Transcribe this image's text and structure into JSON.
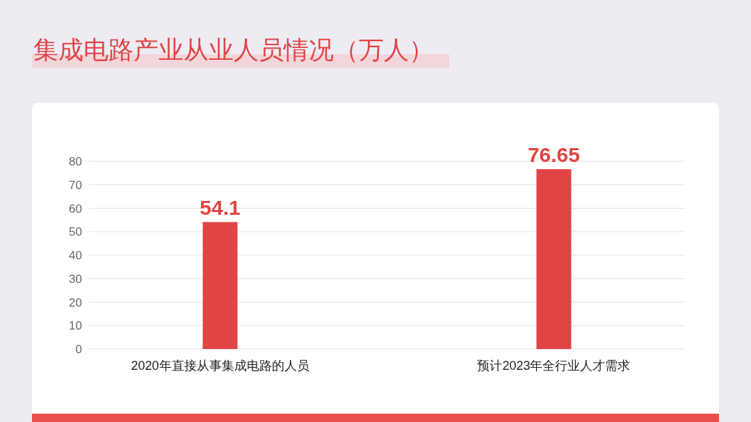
{
  "chart_data": {
    "type": "bar",
    "title": "集成电路产业从业人员情况（万人）",
    "categories": [
      "2020年直接从事集成电路的人员",
      "预计2023年全行业人才需求"
    ],
    "values": [
      54.1,
      76.65
    ],
    "color": "#e04444",
    "ylim": [
      0,
      80
    ],
    "yticks": [
      0,
      10,
      20,
      30,
      40,
      50,
      60,
      70,
      80
    ],
    "grid": "y",
    "data_labels": true
  }
}
